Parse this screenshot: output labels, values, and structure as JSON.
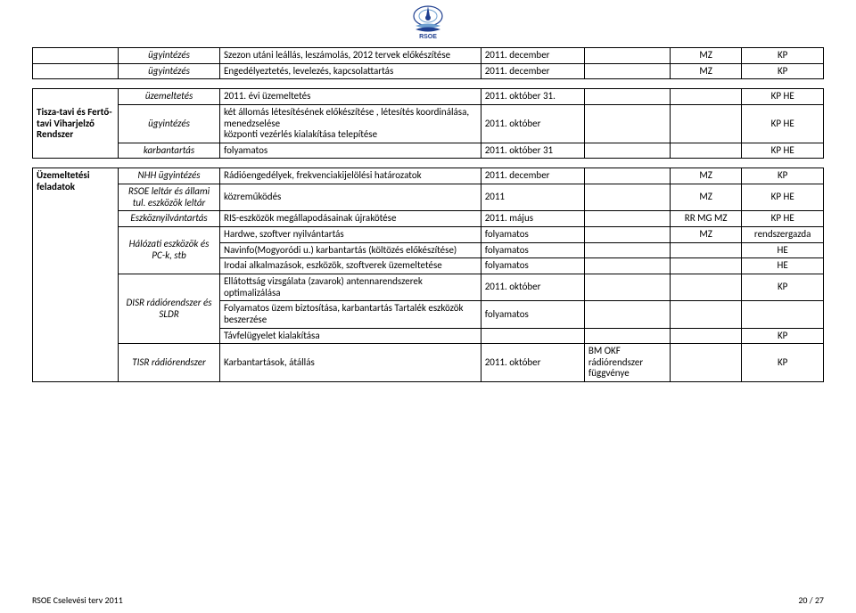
{
  "logo": {
    "label": "RSOE"
  },
  "colors": {
    "border": "#000000",
    "shade": "#bfbfbf",
    "page_bg": "#ffffff",
    "text": "#000000",
    "logo_a": "#1f3f8f",
    "logo_b": "#6fa0d0"
  },
  "table1": {
    "rows": [
      {
        "a": "",
        "b": "ügyintézés",
        "c": "Szezon utáni leállás, leszámolás, 2012 tervek előkészítése",
        "d": "2011. december",
        "e": "",
        "f": "MZ",
        "g": "KP",
        "a_noborder": true
      },
      {
        "a": "",
        "b": "ügyintézés",
        "c": "Engedélyeztetés, levelezés, kapcsolattartás",
        "d": "2011. december",
        "e": "",
        "f": "MZ",
        "g": "KP",
        "a_noborder": true,
        "e_shade": true
      }
    ]
  },
  "table2": {
    "label": "Tisza-tavi és Fertő-tavi Viharjelző Rendszer",
    "rows": [
      {
        "b": "üzemeltetés",
        "c": "2011. évi üzemeltetés",
        "d": "2011. október 31.",
        "e": "",
        "f": "",
        "g": "KP HE"
      },
      {
        "b": "ügyintézés",
        "c": "két állomás létesítésének előkészítése , létesítés koordinálása, menedzselése\nközponti vezérlés kialakítása telepítése",
        "d": "2011. október",
        "e": "",
        "f": "",
        "g": "KP HE"
      },
      {
        "b": "karbantartás",
        "c": "folyamatos",
        "d": "2011. október 31",
        "e": "",
        "f": "",
        "g": "KP HE"
      }
    ]
  },
  "table3": {
    "label": "Üzemeltetési feladatok",
    "groups": [
      {
        "b": "NHH ügyintézés",
        "rows": [
          {
            "c": "Rádióengedélyek, frekvenciakijelölési határozatok",
            "d": "2011. december",
            "e": "",
            "f": "MZ",
            "g": "KP"
          }
        ]
      },
      {
        "b": "RSOE leltár és állami tul. eszközök leltár",
        "rows": [
          {
            "c": "közreműködés",
            "d": "2011",
            "e": "",
            "f": "MZ",
            "g": "KP HE"
          }
        ]
      },
      {
        "b": "Eszköznyilvántartás",
        "rows": [
          {
            "c": "RIS-eszközök megállapodásainak újrakötése",
            "d": "2011. május",
            "e": "",
            "f": "RR MG MZ",
            "g": "KP HE"
          }
        ]
      },
      {
        "b": "Hálózati eszközök és PC-k, stb",
        "rows": [
          {
            "c": "Hardwe, szoftver nyilvántartás",
            "d": "folyamatos",
            "e": "",
            "f": "MZ",
            "g": "rendszergazda"
          },
          {
            "c": "Navinfo(Mogyoródi u.) karbantartás (költözés előkészítése)",
            "d": "folyamatos",
            "e": "",
            "f": "",
            "g": "HE"
          },
          {
            "c": "Irodai alkalmazások, eszközök, szoftverek üzemeltetése",
            "d": "folyamatos",
            "e": "",
            "f": "",
            "g": "HE"
          }
        ]
      },
      {
        "b": "DISR rádiórendszer és SLDR",
        "rows": [
          {
            "c": "Ellátottság vizsgálata (zavarok) antennarendszerek optimalizálása",
            "d": "2011. október",
            "e": "",
            "f": "",
            "g": "KP"
          },
          {
            "c": "Folyamatos üzem biztosítása, karbantartás Tartalék eszközök beszerzése",
            "d": "folyamatos",
            "e": "",
            "f": "",
            "g": ""
          },
          {
            "c": "Távfelügyelet kialakítása",
            "d": "",
            "e": "",
            "f": "",
            "g": "KP"
          }
        ]
      },
      {
        "b": "TISR rádiórendszer",
        "rows": [
          {
            "c": "Karbantartások, átállás",
            "d": "2011. október",
            "e": "BM OKF rádiórendszer függvénye",
            "f": "",
            "g": "KP"
          }
        ]
      }
    ]
  },
  "footer": {
    "left": "RSOE Cselevési terv 2011",
    "right": "20 / 27"
  }
}
